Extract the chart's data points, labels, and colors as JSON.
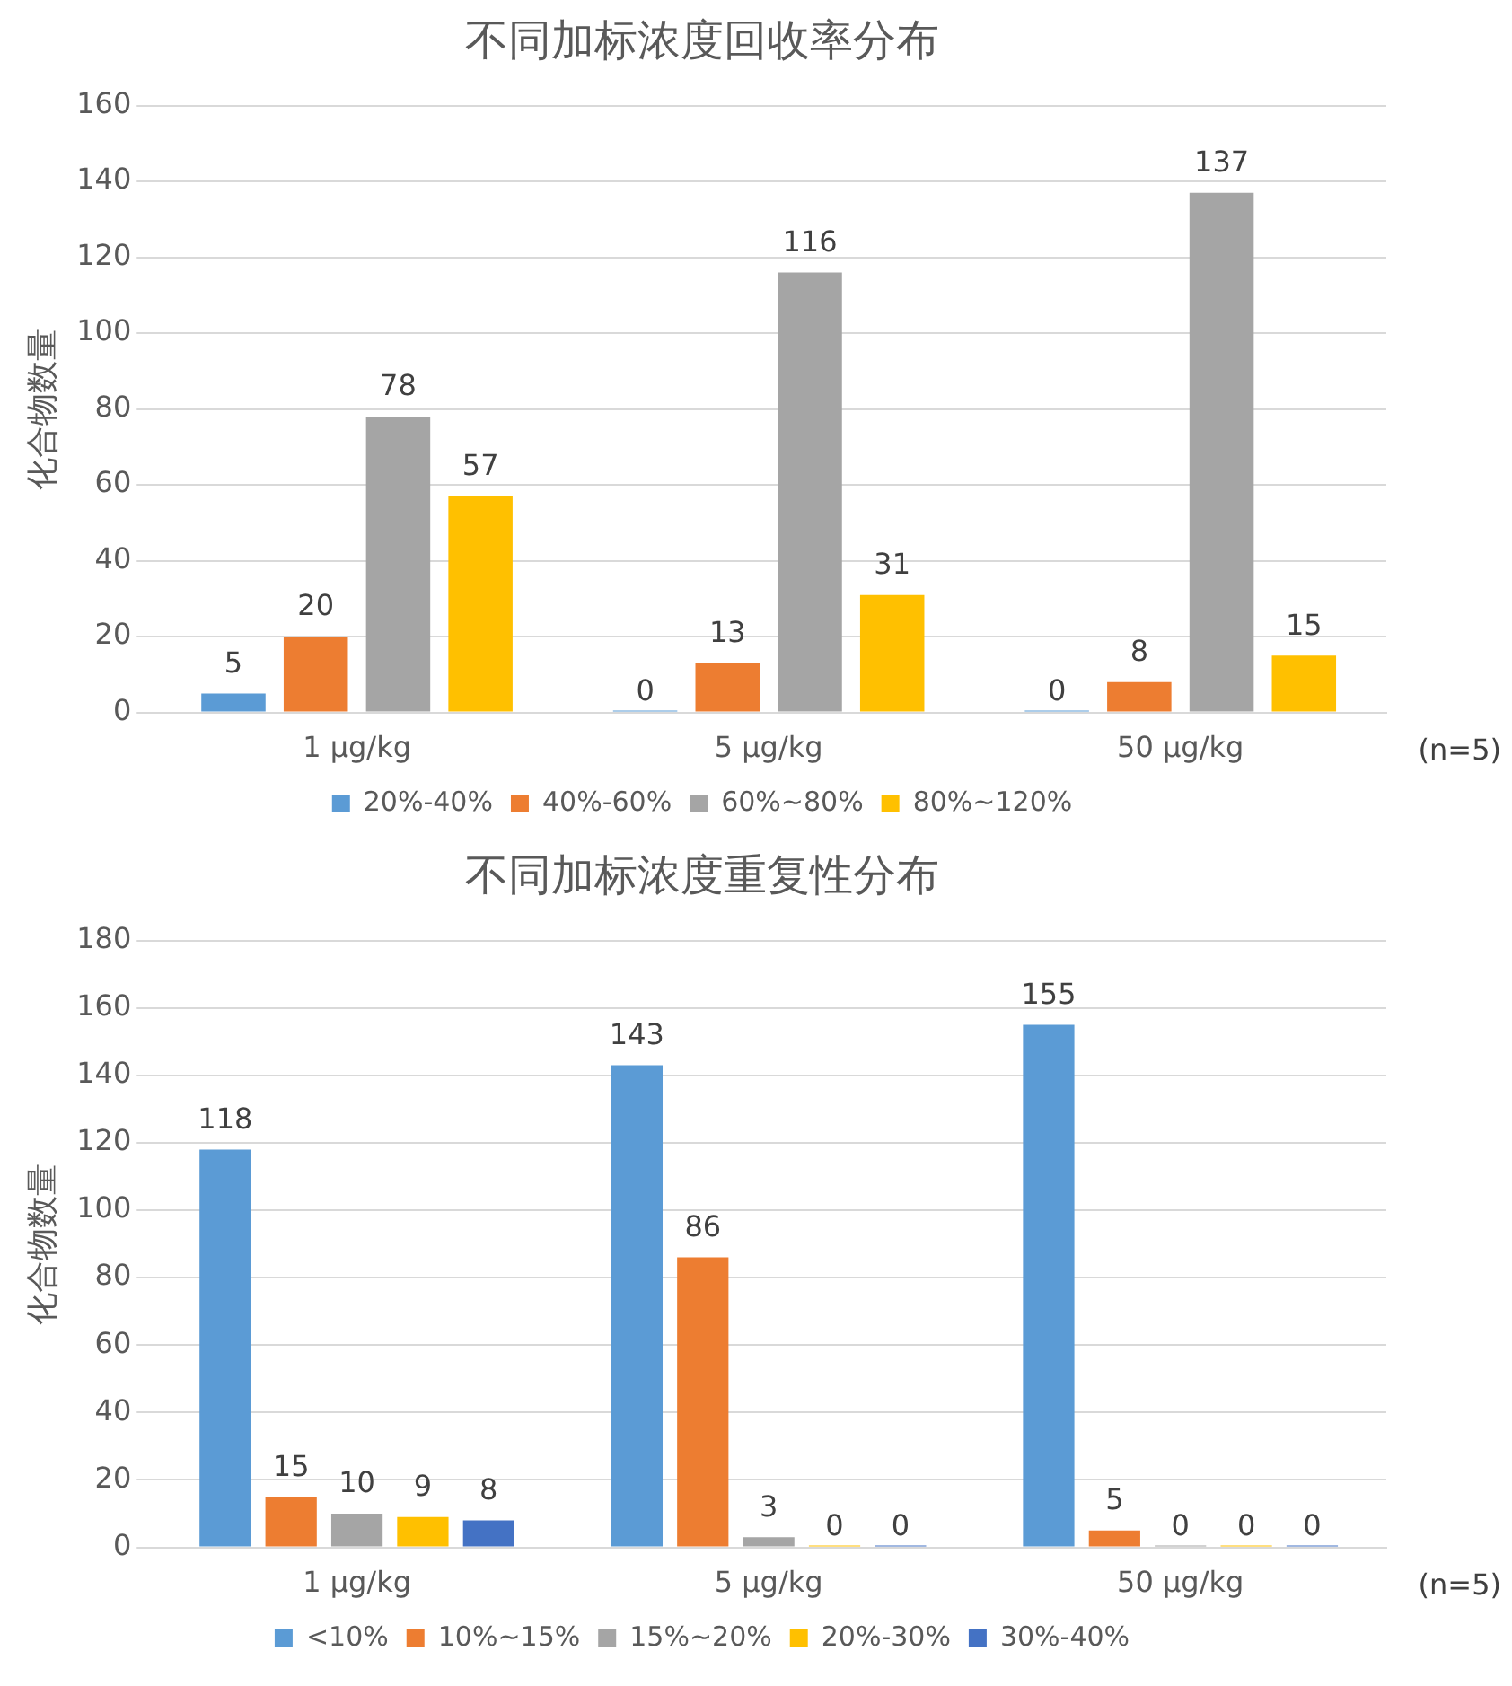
{
  "chart_data": [
    {
      "type": "bar",
      "title": "不同加标浓度回收率分布",
      "ylabel": "化合物数量",
      "categories": [
        "1 μg/kg",
        "5 μg/kg",
        "50 μg/kg"
      ],
      "series": [
        {
          "name": "20%-40%",
          "color": "#5b9bd5",
          "values": [
            5,
            0,
            0
          ]
        },
        {
          "name": "40%-60%",
          "color": "#ed7d31",
          "values": [
            20,
            13,
            8
          ]
        },
        {
          "name": "60%~80%",
          "color": "#a5a5a5",
          "values": [
            78,
            116,
            137
          ]
        },
        {
          "name": "80%~120%",
          "color": "#ffc000",
          "values": [
            57,
            31,
            15
          ]
        }
      ],
      "ylim": [
        0,
        160
      ],
      "yticks": [
        0,
        20,
        40,
        60,
        80,
        100,
        120,
        140,
        160
      ],
      "grid": "y",
      "legend": "bottom",
      "data_labels": true,
      "annotations": [
        "(n=5)"
      ]
    },
    {
      "type": "bar",
      "title": "不同加标浓度重复性分布",
      "ylabel": "化合物数量",
      "categories": [
        "1 μg/kg",
        "5 μg/kg",
        "50 μg/kg"
      ],
      "series": [
        {
          "name": "<10%",
          "color": "#5b9bd5",
          "values": [
            118,
            143,
            155
          ]
        },
        {
          "name": "10%~15%",
          "color": "#ed7d31",
          "values": [
            15,
            86,
            5
          ]
        },
        {
          "name": "15%~20%",
          "color": "#a5a5a5",
          "values": [
            10,
            3,
            0
          ]
        },
        {
          "name": "20%-30%",
          "color": "#ffc000",
          "values": [
            9,
            0,
            0
          ]
        },
        {
          "name": "30%-40%",
          "color": "#4472c4",
          "values": [
            8,
            0,
            0
          ]
        }
      ],
      "ylim": [
        0,
        180
      ],
      "yticks": [
        0,
        20,
        40,
        60,
        80,
        100,
        120,
        140,
        160,
        180
      ],
      "grid": "y",
      "legend": "bottom",
      "data_labels": true,
      "annotations": [
        "(n=5)"
      ]
    }
  ]
}
